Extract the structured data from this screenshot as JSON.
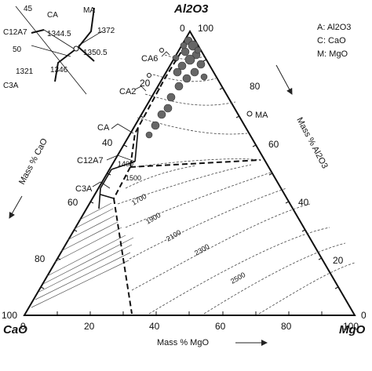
{
  "corners": {
    "top": "Al2O3",
    "left": "CaO",
    "right": "MgO"
  },
  "legend": [
    "A: Al2O3",
    "C: CaO",
    "M: MgO"
  ],
  "axis_titles": {
    "right": "Mass % Al2O3",
    "left": "Mass % CaO",
    "bottom": "Mass % MgO"
  },
  "ticks": {
    "bottom": [
      "0",
      "20",
      "40",
      "60",
      "80",
      "100"
    ],
    "right": [
      "100",
      "80",
      "60",
      "40",
      "20",
      "0"
    ],
    "left": [
      "0",
      "20",
      "40",
      "60",
      "80",
      "100"
    ]
  },
  "phases": {
    "CA6": "CA6",
    "CA2": "CA2",
    "MA": "MA",
    "CA": "CA",
    "C12A7": "C12A7",
    "C3A": "C3A"
  },
  "isotherms": [
    "1400",
    "1500",
    "1700",
    "1900",
    "2100",
    "2300",
    "2500"
  ],
  "inset": {
    "labels": {
      "CA": "CA",
      "MA": "MA",
      "C12A7": "C12A7",
      "C3A": "C3A"
    },
    "temps": [
      "1372",
      "1344.5",
      "1350.5",
      "1346",
      "1321"
    ],
    "ticks": [
      "45",
      "50"
    ]
  },
  "axis_arrow_labels": {
    "bottom_arrow": "→"
  }
}
